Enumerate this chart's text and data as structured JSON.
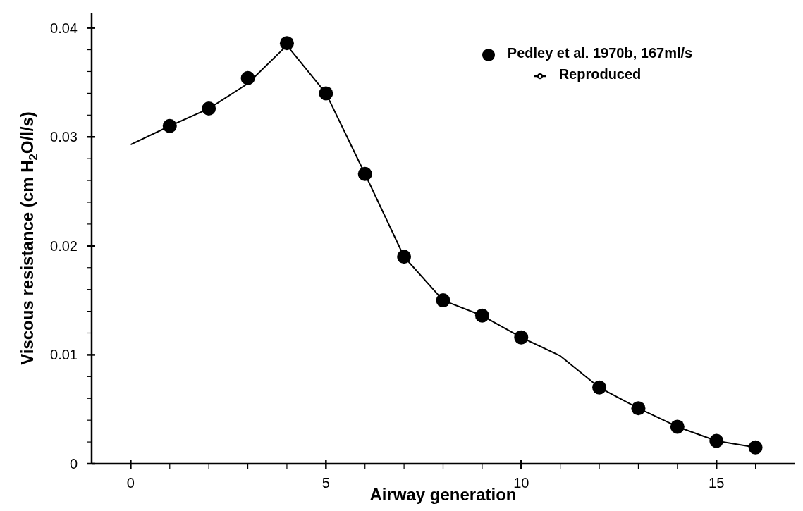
{
  "chart_data": {
    "type": "line",
    "xlabel": "Airway generation",
    "ylabel": "Viscous resistance (cm H$_{2}$O/l/s)",
    "xlim": [
      -1,
      17
    ],
    "ylim": [
      0,
      0.0414
    ],
    "xticks": [
      0,
      {
        "value": 1,
        "label": null
      },
      {
        "value": 2,
        "label": null
      },
      {
        "value": 3,
        "label": null
      },
      {
        "value": 4,
        "label": null
      },
      5,
      {
        "value": 6,
        "label": null
      },
      {
        "value": 7,
        "label": null
      },
      {
        "value": 8,
        "label": null
      },
      {
        "value": 9,
        "label": null
      },
      10,
      {
        "value": 11,
        "label": null
      },
      {
        "value": 12,
        "label": null
      },
      {
        "value": 13,
        "label": null
      },
      {
        "value": 14,
        "label": null
      },
      15,
      {
        "value": 16,
        "label": null
      }
    ],
    "yticks": [
      0,
      {
        "value": 0.002,
        "label": null
      },
      {
        "value": 0.004,
        "label": null
      },
      {
        "value": 0.006,
        "label": null
      },
      {
        "value": 0.008,
        "label": null
      },
      0.01,
      {
        "value": 0.012,
        "label": null
      },
      {
        "value": 0.014,
        "label": null
      },
      {
        "value": 0.016,
        "label": null
      },
      {
        "value": 0.018,
        "label": null
      },
      0.02,
      {
        "value": 0.022,
        "label": null
      },
      {
        "value": 0.024,
        "label": null
      },
      {
        "value": 0.026,
        "label": null
      },
      {
        "value": 0.028,
        "label": null
      },
      0.03,
      {
        "value": 0.032,
        "label": null
      },
      {
        "value": 0.034,
        "label": null
      },
      {
        "value": 0.036,
        "label": null
      },
      {
        "value": 0.038,
        "label": null
      },
      0.04
    ],
    "grid": false,
    "legend": "top right",
    "series": [
      {
        "name": "Pedley et al. 1970b, 167ml/s",
        "type": "scatter",
        "marker": "circle",
        "color": "#000000",
        "x": [
          1,
          2,
          3,
          4,
          5,
          6,
          7,
          8,
          9,
          10,
          12,
          13,
          14,
          15,
          16
        ],
        "values": [
          0.031,
          0.0326,
          0.0354,
          0.0386,
          0.034,
          0.0266,
          0.019,
          0.015,
          0.0136,
          0.0116,
          0.007,
          0.0051,
          0.0034,
          0.0021,
          0.0015
        ]
      },
      {
        "name": "Reproduced",
        "type": "line",
        "marker": "none",
        "line_style": "solid",
        "color": "#000000",
        "x": [
          0,
          1,
          2,
          3,
          4,
          5,
          6,
          7,
          8,
          9,
          10,
          11,
          12,
          13,
          14,
          15,
          16
        ],
        "values": [
          0.0293,
          0.031,
          0.0326,
          0.0349,
          0.0384,
          0.034,
          0.0266,
          0.019,
          0.015,
          0.0136,
          0.0116,
          0.0099,
          0.007,
          0.0051,
          0.0034,
          0.0021,
          0.0015
        ]
      }
    ]
  }
}
